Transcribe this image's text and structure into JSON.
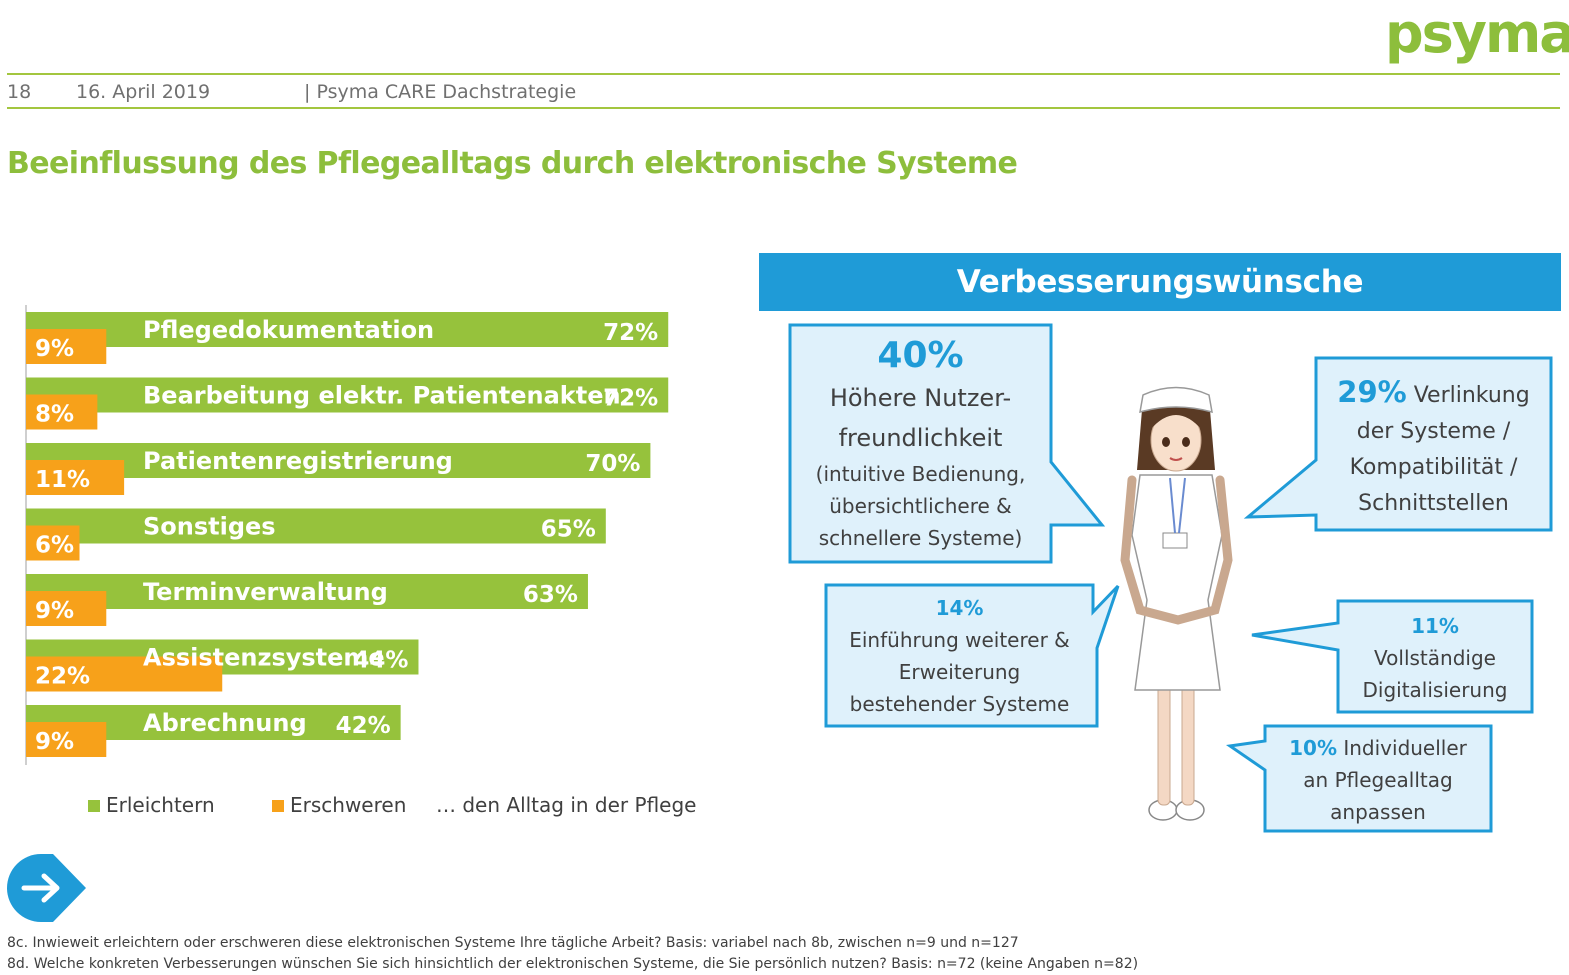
{
  "header": {
    "logo": "psyma",
    "page_number": "18",
    "date": "16. April 2019",
    "doc_title": "| Psyma CARE Dachstrategie",
    "accent_color": "#8dbe3c"
  },
  "title": "Beeinflussung des Pflegealltags durch elektronische Systeme",
  "chart_data": {
    "type": "bar",
    "orientation": "horizontal",
    "categories": [
      "Pflegedokumentation",
      "Bearbeitung elektr. Patientenakten",
      "Patientenregistrierung",
      "Sonstiges",
      "Terminverwaltung",
      "Assistenzsysteme",
      "Abrechnung"
    ],
    "series": [
      {
        "name": "Erleichtern",
        "color": "#96c23c",
        "values": [
          72,
          72,
          70,
          65,
          63,
          44,
          42
        ],
        "labels": [
          "72%",
          "72%",
          "70%",
          "65%",
          "63%",
          "44%",
          "42%"
        ]
      },
      {
        "name": "Erschweren",
        "color": "#f7a11a",
        "values": [
          9,
          8,
          11,
          6,
          9,
          22,
          9
        ],
        "labels": [
          "9%",
          "8%",
          "11%",
          "6%",
          "9%",
          "22%",
          "9%"
        ]
      }
    ],
    "xlim": [
      0,
      100
    ],
    "legend_suffix": "… den Alltag in der Pflege",
    "legend_position": "bottom"
  },
  "improvements": {
    "title": "Verbesserungswünsche",
    "banner_color": "#1f9bd7",
    "box_fill": "#dff1fb",
    "box_border": "#1f9bd7",
    "items": [
      {
        "pct": "40%",
        "lines": [
          "Höhere Nutzer-",
          "freundlichkeit",
          "(intuitive Bedienung,",
          "übersichtlichere &",
          "schnellere Systeme)"
        ]
      },
      {
        "pct": "29%",
        "first": "Verlinkung",
        "lines": [
          "der Systeme /",
          "Kompatibilität /",
          "Schnittstellen"
        ]
      },
      {
        "pct": "14%",
        "lines": [
          "Einführung weiterer &",
          "Erweiterung",
          "bestehender Systeme"
        ]
      },
      {
        "pct": "11%",
        "lines": [
          "Vollständige",
          "Digitalisierung"
        ]
      },
      {
        "pct": "10%",
        "first": "Individueller",
        "lines": [
          "an Pflegealltag",
          "anpassen"
        ]
      }
    ]
  },
  "footnotes": [
    "8c. Inwieweit erleichtern oder erschweren diese elektronischen Systeme Ihre tägliche Arbeit? Basis: variabel nach 8b, zwischen n=9 und n=127",
    "8d. Welche konkreten Verbesserungen wünschen Sie sich hinsichtlich der elektronischen Systeme, die Sie persönlich nutzen? Basis: n=72 (keine Angaben n=82)"
  ],
  "nav": {
    "icon": "arrow-right-icon",
    "color": "#1f9bd7"
  }
}
